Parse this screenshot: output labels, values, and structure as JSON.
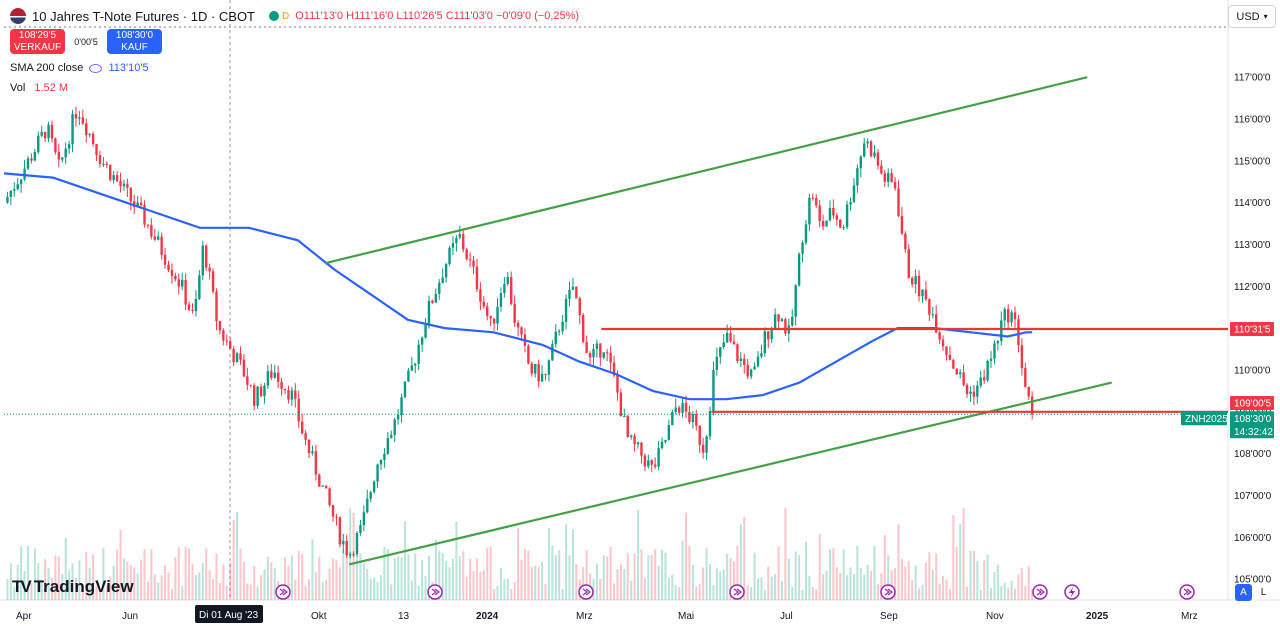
{
  "header": {
    "title": "10 Jahres T-Note Futures · 1D · CBOT",
    "ohlc_open": "O111'13'0",
    "ohlc_high": "H111'16'0",
    "ohlc_low": "L110'26'5",
    "ohlc_close": "C111'03'0",
    "ohlc_change": "−0'09'0 (−0,25%)",
    "market_status_letter": "D"
  },
  "trade": {
    "sell_price": "108'29'5",
    "sell_label": "VERKAUF",
    "spread": "0'00'5",
    "buy_price": "108'30'0",
    "buy_label": "KAUF"
  },
  "indicators": {
    "sma_label": "SMA 200 close",
    "sma_value": "113'10'5",
    "vol_label": "Vol",
    "vol_value": "1.52 M"
  },
  "currency": "USD",
  "brand": "TradingView",
  "scale_buttons": {
    "auto": "A",
    "log": "L"
  },
  "colors": {
    "up": "#089981",
    "down": "#f23645",
    "sma": "#2962ff",
    "channel": "#43a047",
    "level": "#e53935"
  },
  "chart_data": {
    "type": "candlestick",
    "y_axis_ticks": [
      "117'00'0",
      "116'00'0",
      "115'00'0",
      "114'00'0",
      "113'00'0",
      "112'00'0",
      "111'00'0",
      "110'00'0",
      "109'00'0",
      "108'00'0",
      "107'00'0",
      "106'00'0",
      "105'00'0"
    ],
    "y_axis_values": [
      117,
      116,
      115,
      114,
      113,
      112,
      111,
      110,
      109,
      108,
      107,
      106,
      105
    ],
    "ylim": [
      104.5,
      118.2
    ],
    "x_axis_labels": [
      "Apr",
      "Jun",
      "Okt",
      "13",
      "2024",
      "Mrz",
      "Mai",
      "Jul",
      "Sep",
      "Nov",
      "2025",
      "Mrz"
    ],
    "x_axis_bold": [
      "2024",
      "2025"
    ],
    "crosshair_date_label": "Di 01 Aug '23",
    "price_labels": [
      {
        "text": "110'31'5",
        "value": 110.98,
        "color": "#f23645"
      },
      {
        "text": "109'00'5",
        "value": 109.02,
        "color": "#f23645"
      },
      {
        "text": "ZNH2025",
        "value": 108.94,
        "color": "#089981"
      },
      {
        "text": "108'30'0",
        "value": 108.94,
        "color": "#089981"
      },
      {
        "text": "14:32:42",
        "value": 108.94,
        "color": "#089981"
      }
    ],
    "last_price": 108.94,
    "horizontal_levels": [
      {
        "value": 110.98,
        "x_start": 0.488
      },
      {
        "value": 109.0,
        "x_start": 0.578
      }
    ],
    "trendlines": [
      {
        "name": "upper channel",
        "from": {
          "x": 0.262,
          "y": 112.55
        },
        "to": {
          "x": 0.885,
          "y": 117.0
        }
      },
      {
        "name": "lower channel",
        "from": {
          "x": 0.282,
          "y": 105.35
        },
        "to": {
          "x": 0.905,
          "y": 109.7
        }
      }
    ],
    "price_anchors": [
      [
        0.0,
        114.0
      ],
      [
        0.02,
        115.0
      ],
      [
        0.035,
        115.8
      ],
      [
        0.045,
        114.8
      ],
      [
        0.06,
        116.3
      ],
      [
        0.08,
        115.0
      ],
      [
        0.1,
        114.2
      ],
      [
        0.115,
        113.6
      ],
      [
        0.13,
        112.8
      ],
      [
        0.145,
        112.0
      ],
      [
        0.155,
        111.2
      ],
      [
        0.163,
        113.0
      ],
      [
        0.175,
        111.0
      ],
      [
        0.195,
        110.0
      ],
      [
        0.205,
        109.3
      ],
      [
        0.22,
        110.0
      ],
      [
        0.235,
        109.4
      ],
      [
        0.245,
        108.4
      ],
      [
        0.255,
        107.6
      ],
      [
        0.265,
        106.8
      ],
      [
        0.275,
        106.0
      ],
      [
        0.282,
        105.6
      ],
      [
        0.292,
        106.2
      ],
      [
        0.305,
        107.8
      ],
      [
        0.32,
        108.8
      ],
      [
        0.335,
        110.2
      ],
      [
        0.345,
        111.3
      ],
      [
        0.36,
        112.5
      ],
      [
        0.372,
        113.2
      ],
      [
        0.385,
        112.2
      ],
      [
        0.398,
        111.0
      ],
      [
        0.41,
        112.4
      ],
      [
        0.418,
        111.1
      ],
      [
        0.43,
        110.0
      ],
      [
        0.442,
        109.8
      ],
      [
        0.455,
        111.2
      ],
      [
        0.465,
        112.0
      ],
      [
        0.478,
        110.2
      ],
      [
        0.49,
        110.6
      ],
      [
        0.5,
        109.6
      ],
      [
        0.51,
        108.3
      ],
      [
        0.52,
        108.0
      ],
      [
        0.53,
        107.6
      ],
      [
        0.54,
        108.3
      ],
      [
        0.55,
        109.2
      ],
      [
        0.562,
        108.8
      ],
      [
        0.572,
        108.1
      ],
      [
        0.58,
        110.0
      ],
      [
        0.59,
        110.8
      ],
      [
        0.6,
        110.3
      ],
      [
        0.612,
        109.8
      ],
      [
        0.622,
        110.8
      ],
      [
        0.632,
        111.4
      ],
      [
        0.642,
        110.8
      ],
      [
        0.652,
        113.2
      ],
      [
        0.66,
        114.3
      ],
      [
        0.667,
        113.4
      ],
      [
        0.677,
        113.8
      ],
      [
        0.685,
        113.4
      ],
      [
        0.695,
        114.6
      ],
      [
        0.703,
        115.5
      ],
      [
        0.71,
        115.2
      ],
      [
        0.718,
        114.6
      ],
      [
        0.728,
        114.4
      ],
      [
        0.738,
        112.4
      ],
      [
        0.748,
        111.9
      ],
      [
        0.758,
        111.4
      ],
      [
        0.768,
        110.6
      ],
      [
        0.778,
        110.0
      ],
      [
        0.788,
        109.4
      ],
      [
        0.798,
        109.7
      ],
      [
        0.808,
        110.4
      ],
      [
        0.816,
        111.2
      ],
      [
        0.822,
        111.4
      ],
      [
        0.828,
        110.9
      ],
      [
        0.833,
        109.8
      ],
      [
        0.838,
        109.1
      ],
      [
        0.84,
        108.94
      ]
    ],
    "sma_200": [
      [
        0.0,
        114.7
      ],
      [
        0.04,
        114.6
      ],
      [
        0.08,
        114.2
      ],
      [
        0.12,
        113.8
      ],
      [
        0.16,
        113.4
      ],
      [
        0.2,
        113.4
      ],
      [
        0.24,
        113.1
      ],
      [
        0.27,
        112.4
      ],
      [
        0.3,
        111.8
      ],
      [
        0.33,
        111.2
      ],
      [
        0.36,
        111.0
      ],
      [
        0.4,
        110.9
      ],
      [
        0.44,
        110.6
      ],
      [
        0.47,
        110.2
      ],
      [
        0.5,
        109.9
      ],
      [
        0.53,
        109.5
      ],
      [
        0.56,
        109.3
      ],
      [
        0.59,
        109.3
      ],
      [
        0.62,
        109.4
      ],
      [
        0.65,
        109.7
      ],
      [
        0.68,
        110.2
      ],
      [
        0.71,
        110.7
      ],
      [
        0.73,
        111.0
      ],
      [
        0.76,
        111.0
      ],
      [
        0.79,
        110.9
      ],
      [
        0.82,
        110.8
      ],
      [
        0.835,
        110.9
      ],
      [
        0.84,
        110.9
      ]
    ]
  }
}
